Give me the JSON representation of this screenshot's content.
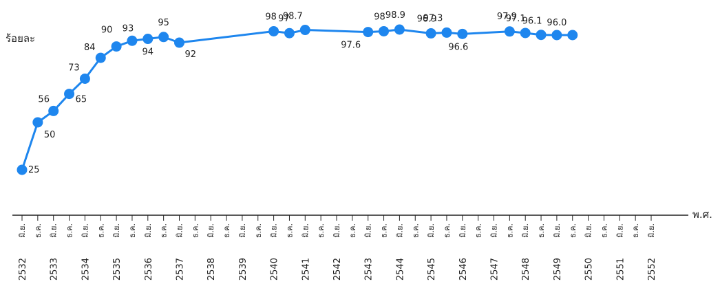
{
  "chart_data": {
    "type": "line",
    "ylabel": "ร้อยละ",
    "xlabel": "พ.ศ.",
    "color": "#1e86ee",
    "x": [
      "มิ.ย. 2532",
      "ธ.ค. 2532",
      "มิ.ย. 2533",
      "ธ.ค. 2533",
      "มิ.ย. 2534",
      "ธ.ค. 2534",
      "มิ.ย. 2535",
      "ธ.ค. 2535",
      "มิ.ย. 2536",
      "ธ.ค. 2536",
      "มิ.ย. 2537",
      "มิ.ย. 2540",
      "ธ.ค. 2540",
      "มิ.ย. 2541",
      "ธ.ค. 2541",
      "มิ.ย. 2542",
      "ธ.ค. 2542",
      "มิ.ย. 2543",
      "ธ.ค. 2543",
      "มิ.ย. 2544",
      "ธ.ค. 2544",
      "มิ.ย. 2545",
      "ธ.ค. 2545",
      "มิ.ย. 2546",
      "ธ.ค. 2546",
      "มิ.ย. 2547",
      "ธ.ค. 2547",
      "มิ.ย. 2548",
      "ธ.ค. 2548",
      "มิ.ย. 2549",
      "ธ.ค. 2549",
      "มิ.ย. 2550",
      "ธ.ค. 2550",
      "มิ.ย. 2551",
      "ธ.ค. 2551",
      "มิ.ย. 2552",
      "ธ.ค. 2552"
    ],
    "series": [
      {
        "x": [
          "มิ.ย. 2532",
          "ธ.ค. 2532",
          "มิ.ย. 2533",
          "ธ.ค. 2533",
          "มิ.ย. 2534",
          "ธ.ค. 2534",
          "มิ.ย. 2535",
          "ธ.ค. 2535",
          "มิ.ย. 2536",
          "ธ.ค. 2536",
          "มิ.ย. 2537",
          "มิ.ย. 2540",
          "ธ.ค. 2540",
          "มิ.ย. 2541",
          "มิ.ย. 2543",
          "ธ.ค. 2543",
          "มิ.ย. 2544",
          "มิ.ย. 2545",
          "ธ.ค. 2545",
          "มิ.ย. 2546",
          "ธ.ค. 2547",
          "มิ.ย. 2548",
          "ธ.ค. 2548",
          "มิ.ย. 2549",
          "ธ.ค. 2549"
        ],
        "values": [
          25,
          50,
          56,
          65,
          73,
          84,
          90,
          93,
          94,
          95,
          92,
          98,
          97,
          98.7,
          97.6,
          98,
          98.9,
          96.9,
          97.3,
          96.6,
          97.9,
          97.1,
          96.1,
          96.0,
          96.0
        ],
        "labels": [
          "25",
          "50",
          "56",
          "65",
          "73",
          "84",
          "90",
          "93",
          "94",
          "95",
          "92",
          "98",
          "97",
          "98.7",
          "97.6",
          "98",
          "98.9",
          "96.9",
          "97.3",
          "96.6",
          "97.9",
          "97.1",
          "96.1",
          "96.0",
          ""
        ]
      }
    ],
    "tick_labels": {
      "period": [
        "มิ.ย.",
        "ธ.ค.",
        "มิ.ย.",
        "ธ.ค.",
        "มิ.ย.",
        "ธ.ค.",
        "มิ.ย.",
        "ธ.ค.",
        "มิ.ย.",
        "ธ.ค.",
        "มิ.ย.",
        "ธ.ค.",
        "มิ.ย.",
        "ธ.ค.",
        "มิ.ย.",
        "ธ.ค.",
        "มิ.ย.",
        "ธ.ค.",
        "มิ.ย.",
        "ธ.ค.",
        "มิ.ย.",
        "ธ.ค.",
        "มิ.ย.",
        "ธ.ค.",
        "มิ.ย.",
        "ธ.ค.",
        "มิ.ย.",
        "ธ.ค.",
        "มิ.ย.",
        "ธ.ค.",
        "มิ.ย.",
        "ธ.ค.",
        "มิ.ย.",
        "ธ.ค.",
        "มิ.ย.",
        "ธ.ค.",
        "มิ.ย.",
        "ธ.ค.",
        "มิ.ย.",
        "ธ.ค.",
        "มิ.ย."
      ],
      "years": [
        "2532",
        "2533",
        "2534",
        "2535",
        "2536",
        "2537",
        "2538",
        "2539",
        "2540",
        "2541",
        "2542",
        "2543",
        "2544",
        "2545",
        "2546",
        "2547",
        "2548",
        "2549",
        "2550",
        "2551",
        "2552"
      ]
    },
    "grid": false,
    "legend": "none"
  }
}
